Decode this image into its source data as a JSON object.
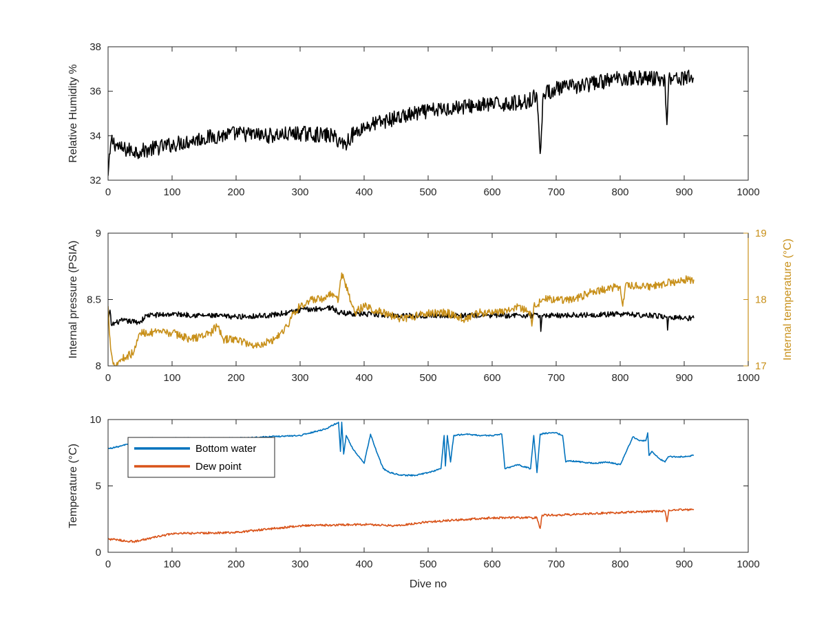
{
  "chart_data": [
    {
      "type": "line",
      "ylabel": "Relative Humidity %",
      "xlabel": "",
      "xlim": [
        0,
        1000
      ],
      "ylim": [
        32,
        38
      ],
      "xticks": [
        "0",
        "100",
        "200",
        "300",
        "400",
        "500",
        "600",
        "700",
        "800",
        "900",
        "1000"
      ],
      "yticks": [
        "32",
        "34",
        "36",
        "38"
      ],
      "grid": false,
      "series": [
        {
          "color": "#000000",
          "noise": 0.35,
          "x": [
            0,
            5,
            20,
            50,
            100,
            150,
            200,
            250,
            300,
            350,
            370,
            380,
            400,
            450,
            500,
            550,
            600,
            650,
            670,
            675,
            680,
            700,
            750,
            800,
            850,
            870,
            873,
            876,
            900,
            915
          ],
          "y": [
            32.2,
            33.8,
            33.4,
            33.3,
            33.6,
            33.9,
            34.1,
            34.0,
            34.1,
            34.0,
            33.6,
            34.0,
            34.4,
            34.8,
            35.1,
            35.3,
            35.4,
            35.5,
            35.8,
            33.2,
            35.9,
            36.1,
            36.3,
            36.6,
            36.6,
            36.5,
            34.5,
            36.6,
            36.6,
            36.6
          ]
        }
      ]
    },
    {
      "type": "line",
      "ylabel": "Internal pressure (PSIA)",
      "y2label": "Internal temperature (°C)",
      "xlabel": "",
      "xlim": [
        0,
        1000
      ],
      "ylim": [
        8,
        9
      ],
      "y2lim": [
        17,
        19
      ],
      "xticks": [
        "0",
        "100",
        "200",
        "300",
        "400",
        "500",
        "600",
        "700",
        "800",
        "900",
        "1000"
      ],
      "yticks": [
        "8",
        "8.5",
        "9"
      ],
      "y2ticks": [
        "17",
        "18",
        "19"
      ],
      "grid": false,
      "series": [
        {
          "axis": "left",
          "color": "#000000",
          "noise": 0.02,
          "x": [
            0,
            3,
            5,
            20,
            50,
            60,
            100,
            150,
            200,
            250,
            280,
            300,
            350,
            360,
            400,
            450,
            500,
            550,
            600,
            650,
            675,
            676,
            678,
            700,
            800,
            850,
            873,
            874,
            876,
            900,
            915
          ],
          "y": [
            8.33,
            8.42,
            8.31,
            8.34,
            8.33,
            8.38,
            8.39,
            8.38,
            8.37,
            8.38,
            8.4,
            8.42,
            8.44,
            8.4,
            8.39,
            8.38,
            8.38,
            8.38,
            8.38,
            8.38,
            8.38,
            8.26,
            8.38,
            8.38,
            8.39,
            8.38,
            8.37,
            8.27,
            8.37,
            8.36,
            8.36
          ]
        },
        {
          "axis": "right",
          "color": "#c8901a",
          "noise": 0.06,
          "x": [
            0,
            2,
            5,
            10,
            20,
            40,
            50,
            60,
            80,
            100,
            130,
            160,
            170,
            180,
            200,
            230,
            260,
            280,
            290,
            300,
            320,
            340,
            350,
            360,
            365,
            375,
            385,
            400,
            430,
            460,
            500,
            530,
            560,
            580,
            610,
            640,
            660,
            662,
            665,
            680,
            700,
            730,
            750,
            800,
            804,
            808,
            850,
            900,
            915
          ],
          "y": [
            17.9,
            17.5,
            17.2,
            17.0,
            17.1,
            17.2,
            17.5,
            17.5,
            17.5,
            17.5,
            17.4,
            17.5,
            17.6,
            17.4,
            17.4,
            17.3,
            17.4,
            17.6,
            17.8,
            17.9,
            18.0,
            18.0,
            18.1,
            18.0,
            18.4,
            18.1,
            17.8,
            17.9,
            17.8,
            17.7,
            17.8,
            17.8,
            17.7,
            17.8,
            17.8,
            17.9,
            17.8,
            17.6,
            17.9,
            18.0,
            18.0,
            18.0,
            18.1,
            18.2,
            17.9,
            18.2,
            18.2,
            18.3,
            18.3
          ]
        }
      ]
    },
    {
      "type": "line",
      "ylabel": "Temperature (°C)",
      "xlabel": "Dive no",
      "xlim": [
        0,
        1000
      ],
      "ylim": [
        0,
        10
      ],
      "xticks": [
        "0",
        "100",
        "200",
        "300",
        "400",
        "500",
        "600",
        "700",
        "800",
        "900",
        "1000"
      ],
      "yticks": [
        "0",
        "5",
        "10"
      ],
      "grid": false,
      "legend": "top-left",
      "series": [
        {
          "name": "Bottom water",
          "color": "#0072bd",
          "noise": 0.05,
          "x": [
            0,
            20,
            60,
            100,
            200,
            300,
            340,
            360,
            363,
            365,
            368,
            372,
            380,
            390,
            400,
            410,
            420,
            430,
            440,
            460,
            480,
            500,
            520,
            525,
            527,
            530,
            535,
            540,
            560,
            580,
            600,
            615,
            620,
            640,
            660,
            665,
            670,
            675,
            690,
            700,
            710,
            715,
            720,
            740,
            760,
            780,
            800,
            820,
            830,
            840,
            843,
            845,
            850,
            860,
            870,
            875,
            900,
            915
          ],
          "y": [
            7.8,
            8.0,
            8.6,
            8.6,
            8.6,
            8.8,
            9.3,
            9.8,
            7.6,
            9.8,
            7.4,
            8.8,
            8.0,
            7.3,
            6.7,
            8.9,
            7.5,
            6.3,
            6.0,
            5.8,
            5.8,
            6.0,
            6.3,
            8.8,
            6.5,
            8.8,
            6.8,
            8.8,
            8.9,
            8.8,
            8.8,
            8.9,
            6.3,
            6.6,
            6.3,
            8.8,
            6.0,
            8.9,
            9.0,
            9.0,
            8.8,
            6.8,
            6.9,
            6.8,
            6.7,
            6.8,
            6.6,
            8.7,
            8.4,
            8.4,
            9.0,
            7.3,
            7.6,
            7.1,
            6.8,
            7.2,
            7.2,
            7.3
          ]
        },
        {
          "name": "Dew point",
          "color": "#d95319",
          "noise": 0.08,
          "x": [
            0,
            40,
            100,
            200,
            300,
            400,
            450,
            500,
            600,
            670,
            675,
            678,
            700,
            800,
            870,
            873,
            876,
            900,
            915
          ],
          "y": [
            1.0,
            0.8,
            1.4,
            1.5,
            2.0,
            2.1,
            2.0,
            2.3,
            2.6,
            2.6,
            1.8,
            2.8,
            2.8,
            3.0,
            3.1,
            2.3,
            3.2,
            3.2,
            3.2
          ]
        }
      ]
    }
  ]
}
